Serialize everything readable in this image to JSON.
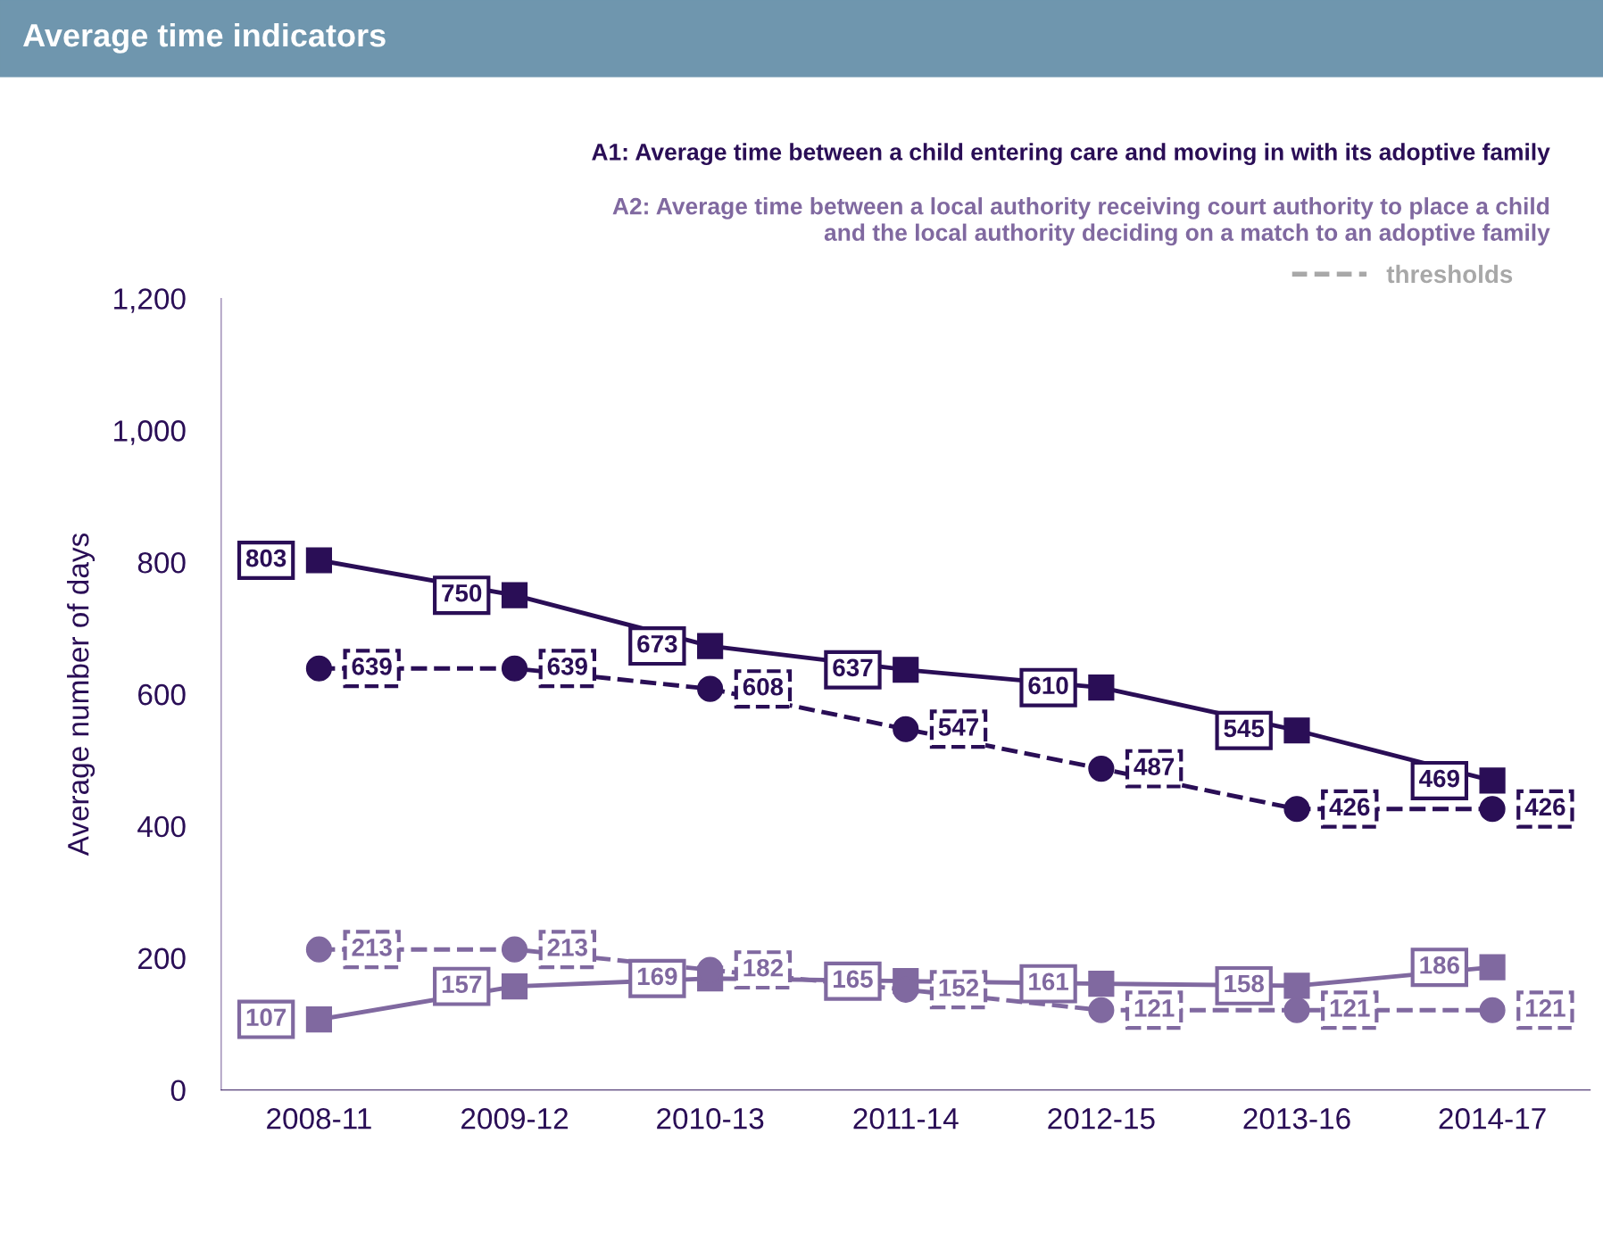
{
  "chart_data": {
    "type": "line",
    "title": "Average time indicators",
    "ylabel": "Average number of days",
    "categories": [
      "2008-11",
      "2009-12",
      "2010-13",
      "2011-14",
      "2012-15",
      "2013-16",
      "2014-17"
    ],
    "series": [
      {
        "name": "A1: Average time between a child entering care and moving in with its adoptive family",
        "color": "#2a0e56",
        "marker": "square",
        "line_style": "solid",
        "values": [
          803,
          750,
          673,
          637,
          610,
          545,
          469
        ]
      },
      {
        "color": "#2a0e56",
        "marker": "circle",
        "line_style": "dashed",
        "values": [
          639,
          639,
          608,
          547,
          487,
          426,
          426
        ]
      },
      {
        "name": "A2: Average time between a local authority receiving court authority to place a child\nand the local authority deciding on a match to an adoptive family",
        "color": "#8069a0",
        "marker": "square",
        "line_style": "solid",
        "values": [
          107,
          157,
          169,
          165,
          161,
          158,
          186
        ]
      },
      {
        "color": "#8069a0",
        "marker": "circle",
        "line_style": "dashed",
        "values": [
          213,
          213,
          182,
          152,
          121,
          121,
          121
        ]
      }
    ],
    "ylim": [
      0,
      1200
    ],
    "yticks": [
      0,
      200,
      400,
      600,
      800,
      {
        "value": 1000,
        "label": "1,000"
      },
      {
        "value": 1200,
        "label": "1,200"
      }
    ],
    "grid": false,
    "data_labels": true,
    "legend": "top right",
    "annotations": [
      "thresholds"
    ]
  }
}
